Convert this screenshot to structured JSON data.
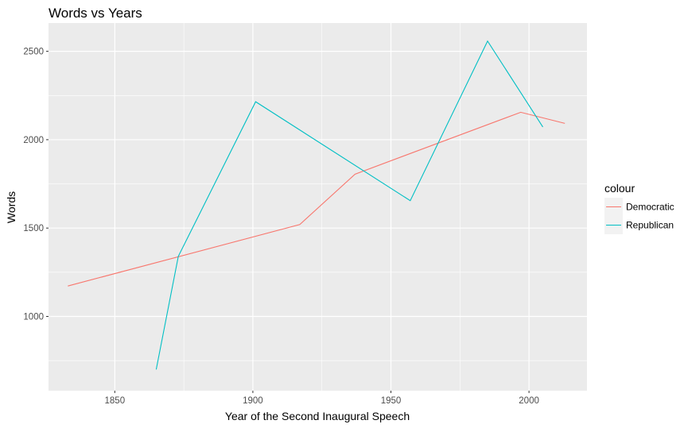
{
  "chart_data": {
    "type": "line",
    "title": "Words vs Years",
    "xlabel": "Year of the Second Inaugural Speech",
    "ylabel": "Words",
    "xlim": [
      1826,
      2021
    ],
    "ylim": [
      580,
      2660
    ],
    "x_ticks": [
      1850,
      1900,
      1950,
      2000
    ],
    "y_ticks": [
      1000,
      1500,
      2000,
      2500
    ],
    "grid": true,
    "legend": {
      "title": "colour",
      "placement": "right"
    },
    "series": [
      {
        "name": "Democratic",
        "color": "#F8766D",
        "points": [
          [
            1833,
            1172
          ],
          [
            1917,
            1520
          ],
          [
            1937,
            1805
          ],
          [
            1997,
            2155
          ],
          [
            2013,
            2092
          ]
        ]
      },
      {
        "name": "Republican",
        "color": "#00BFC4",
        "points": [
          [
            1865,
            700
          ],
          [
            1873,
            1340
          ],
          [
            1901,
            2215
          ],
          [
            1957,
            1655
          ],
          [
            1985,
            2558
          ],
          [
            2005,
            2072
          ]
        ]
      }
    ]
  }
}
